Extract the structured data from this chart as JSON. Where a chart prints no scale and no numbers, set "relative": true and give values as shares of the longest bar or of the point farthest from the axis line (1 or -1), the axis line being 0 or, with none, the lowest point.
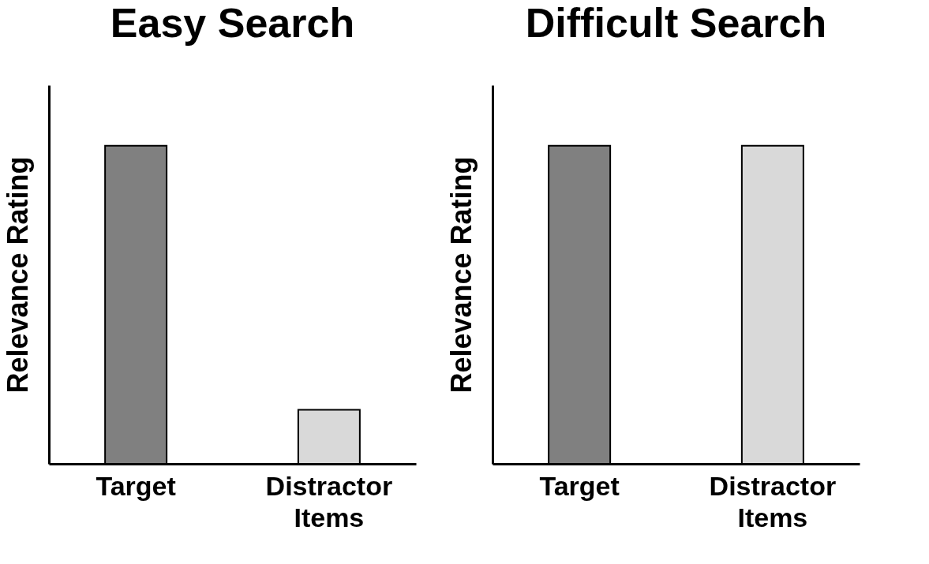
{
  "chart_data": [
    {
      "type": "bar",
      "title": "Easy Search",
      "ylabel": "Relevance Rating",
      "categories": [
        "Target",
        "Distractor Items"
      ],
      "relative": true,
      "grid": false,
      "series": [
        {
          "colors": [
            "#808080",
            "#d9d9d9"
          ],
          "values": [
            1,
            0.17
          ]
        }
      ]
    },
    {
      "type": "bar",
      "title": "Difficult Search",
      "ylabel": "Relevance Rating",
      "categories": [
        "Target",
        "Distractor Items"
      ],
      "relative": true,
      "grid": false,
      "series": [
        {
          "colors": [
            "#808080",
            "#d9d9d9"
          ],
          "values": [
            1,
            1
          ]
        }
      ]
    }
  ]
}
